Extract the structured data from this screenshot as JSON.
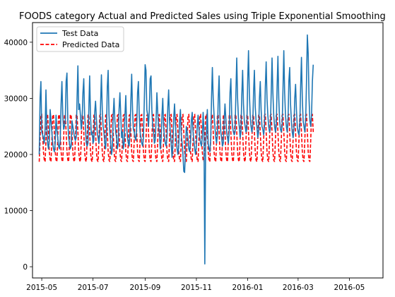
{
  "chart_data": {
    "type": "line",
    "title": "FOODS category Actual and Predicted Sales using Triple Exponential Smoothing",
    "xlabel": "",
    "ylabel": "",
    "x_range": [
      "2015-04-20",
      "2016-06-10"
    ],
    "ylim": [
      -2000,
      43500
    ],
    "x_ticks": [
      "2015-05",
      "2015-07",
      "2015-09",
      "2015-11",
      "2016-01",
      "2016-03",
      "2016-05"
    ],
    "y_ticks": [
      0,
      10000,
      20000,
      30000,
      40000
    ],
    "grid": false,
    "legend_position": "top-left",
    "series": [
      {
        "name": "Test Data",
        "color": "#1f77b4",
        "style": "solid",
        "start_date": "2015-04-28",
        "values": [
          20000,
          30000,
          33000,
          24000,
          23500,
          23000,
          22000,
          24500,
          31500,
          25000,
          22000,
          21000,
          22500,
          28000,
          26000,
          24000,
          22000,
          21000,
          20500,
          22000,
          27000,
          24500,
          23000,
          21500,
          21000,
          22500,
          29000,
          33000,
          27000,
          24500,
          25000,
          26000,
          33000,
          34500,
          26000,
          23000,
          22000,
          21000,
          21500,
          26000,
          25000,
          24000,
          23000,
          22500,
          23000,
          30000,
          35800,
          28000,
          29000,
          27000,
          24500,
          26000,
          31000,
          33500,
          27000,
          25000,
          22000,
          21500,
          22000,
          28000,
          34000,
          27000,
          23500,
          24000,
          22000,
          22500,
          27500,
          29500,
          26500,
          24000,
          23000,
          22000,
          23500,
          29000,
          34200,
          28000,
          25000,
          24000,
          22000,
          21000,
          24000,
          32000,
          35000,
          27000,
          24000,
          22000,
          20000,
          21000,
          27000,
          30000,
          26000,
          24000,
          23000,
          21000,
          22000,
          28000,
          31000,
          27000,
          23000,
          24000,
          21000,
          22000,
          27000,
          30500,
          25000,
          23000,
          22000,
          21500,
          24000,
          29500,
          34300,
          28000,
          24500,
          24000,
          23000,
          22500,
          25000,
          31000,
          33000,
          27000,
          24000,
          23000,
          22000,
          21500,
          23000,
          29500,
          36000,
          35000,
          28000,
          27000,
          25000,
          28000,
          33500,
          34000,
          28000,
          25000,
          24000,
          22000,
          22500,
          26000,
          31000,
          27500,
          25000,
          23500,
          21000,
          22500,
          27000,
          30000,
          25000,
          23000,
          22000,
          21500,
          23000,
          28500,
          31500,
          26000,
          24000,
          22000,
          19500,
          21500,
          26500,
          29000,
          25500,
          23000,
          21000,
          20000,
          21500,
          26000,
          28000,
          23500,
          22000,
          20000,
          17000,
          16800,
          21000,
          25000,
          24000,
          23000,
          21000,
          20500,
          22000,
          26000,
          27500,
          24000,
          22500,
          21000,
          20000,
          21500,
          25000,
          27000,
          24500,
          23000,
          22000,
          21500,
          23000,
          27500,
          24000,
          500,
          22000,
          24000,
          28000,
          22000,
          21000,
          20500,
          22500,
          30000,
          35500,
          30000,
          27000,
          25000,
          23000,
          22000,
          23500,
          30000,
          34000,
          27000,
          24000,
          23000,
          21500,
          22000,
          26000,
          29000,
          26500,
          24000,
          23000,
          22000,
          24000,
          31000,
          33500,
          27000,
          25000,
          24000,
          23500,
          24000,
          31000,
          37200,
          30000,
          26500,
          25000,
          23000,
          24000,
          30500,
          35000,
          29000,
          26000,
          25000,
          24000,
          24500,
          33000,
          38500,
          31000,
          27000,
          25000,
          24000,
          25000,
          31000,
          35000,
          28500,
          26000,
          25000,
          23000,
          24000,
          30000,
          33000,
          28000,
          25000,
          24500,
          23500,
          25000,
          32000,
          36500,
          30000,
          27000,
          25000,
          24000,
          24500,
          31000,
          37200,
          31000,
          27000,
          25000,
          24000,
          25000,
          32000,
          37500,
          30000,
          26000,
          24500,
          24000,
          25000,
          31500,
          38500,
          31000,
          27000,
          25000,
          24000,
          26000,
          33000,
          35500,
          29000,
          26000,
          24000,
          23000,
          24500,
          30000,
          32500,
          28000,
          25000,
          24000,
          23500,
          25000,
          32000,
          37300,
          30000,
          26000,
          25000,
          24000,
          26000,
          33000,
          41300,
          38000,
          30000,
          26000,
          25000,
          27000,
          33000,
          36000
        ]
      },
      {
        "name": "Predicted Data",
        "color": "#ff0000",
        "style": "dashed",
        "start_date": "2015-04-28",
        "period": 7,
        "pattern": [
          18700,
          22500,
          27000,
          27100,
          24000,
          20500,
          19000
        ]
      }
    ]
  }
}
